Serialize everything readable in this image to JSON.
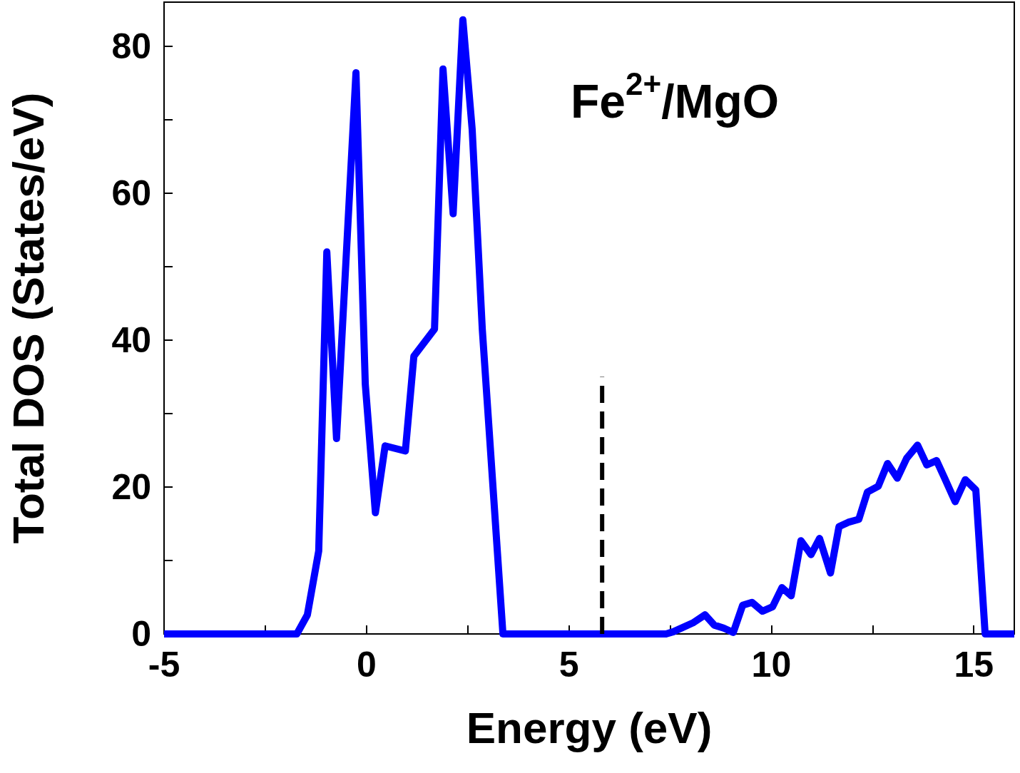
{
  "chart_data": {
    "type": "line",
    "xlabel": "Energy (eV)",
    "ylabel": "Total DOS (States/eV)",
    "annotations": [
      "Fe$^{2+}$/MgO"
    ],
    "xlim": [
      -5,
      16
    ],
    "ylim": [
      0,
      86
    ],
    "xticks": [
      -5,
      {
        "value": -2.5,
        "label": null
      },
      0,
      {
        "value": 2.5,
        "label": null
      },
      5,
      {
        "value": 7.5,
        "label": null
      },
      10,
      {
        "value": 12.5,
        "label": null
      },
      15
    ],
    "yticks": [
      0,
      {
        "value": 10,
        "label": null
      },
      20,
      {
        "value": 30,
        "label": null
      },
      40,
      {
        "value": 50,
        "label": null
      },
      60,
      {
        "value": 70,
        "label": null
      },
      80
    ],
    "grid": false,
    "marker": "none",
    "series": [
      {
        "color": "#0000ff",
        "line_style": "solid",
        "x": [
          -5,
          -1.72,
          -1.46,
          -1.18,
          -0.98,
          -0.74,
          -0.26,
          -0.03,
          0.22,
          0.46,
          0.96,
          1.17,
          1.68,
          1.89,
          2.14,
          2.38,
          2.61,
          2.86,
          3.37,
          7.4,
          7.58,
          8.06,
          8.36,
          8.59,
          8.82,
          9.06,
          9.29,
          9.52,
          9.78,
          10.03,
          10.26,
          10.49,
          10.73,
          10.98,
          11.19,
          11.46,
          11.67,
          11.9,
          12.16,
          12.37,
          12.64,
          12.87,
          13.11,
          13.34,
          13.61,
          13.84,
          14.08,
          14.28,
          14.54,
          14.79,
          15.05,
          15.28,
          16
        ],
        "values": [
          0,
          0,
          2.6,
          11.3,
          52,
          26.6,
          76.4,
          34,
          16.5,
          25.6,
          24.9,
          37.8,
          41.5,
          76.9,
          57.2,
          83.6,
          68.7,
          41.5,
          0,
          0,
          0.3,
          1.5,
          2.6,
          1.2,
          0.8,
          0.2,
          3.9,
          4.3,
          3.1,
          3.7,
          6.3,
          5.2,
          12.7,
          10.8,
          13,
          8.3,
          14.6,
          15.2,
          15.6,
          19.3,
          20.1,
          23.2,
          21.2,
          23.9,
          25.7,
          23,
          23.6,
          21.2,
          18,
          21,
          19.6,
          0,
          0
        ]
      },
      {
        "color": "#000000",
        "line_style": "dashed",
        "x": [
          5.82,
          5.82
        ],
        "values": [
          0,
          35
        ]
      }
    ]
  }
}
